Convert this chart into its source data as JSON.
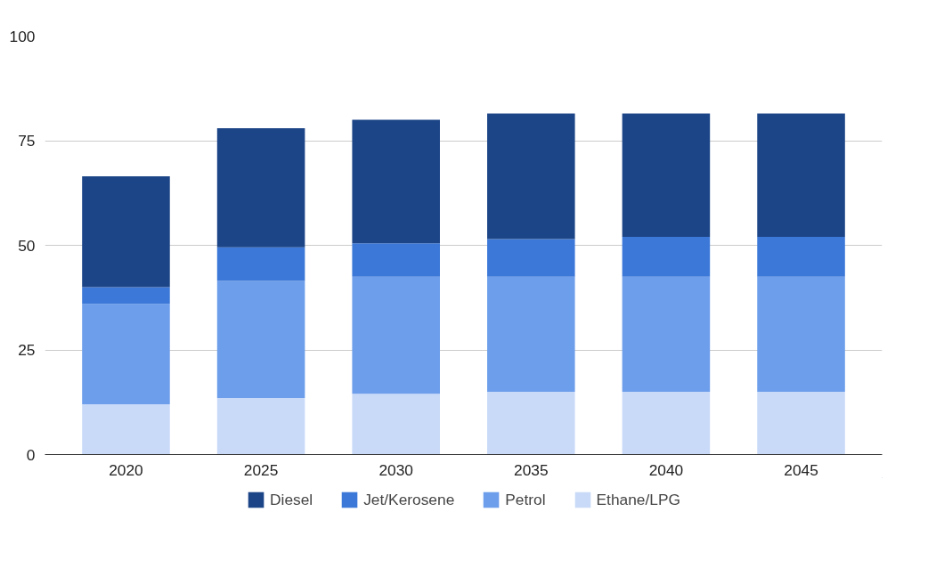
{
  "chart_data": {
    "type": "bar",
    "stacked": true,
    "categories": [
      "2020",
      "2025",
      "2030",
      "2035",
      "2040",
      "2045"
    ],
    "series": [
      {
        "name": "Ethane/LPG",
        "color": "#c9daf8",
        "values": [
          12,
          13.5,
          14.5,
          15,
          15,
          15
        ]
      },
      {
        "name": "Petrol",
        "color": "#6d9eeb",
        "values": [
          24,
          28,
          28,
          27.5,
          27.5,
          27.5
        ]
      },
      {
        "name": "Jet/Kerosene",
        "color": "#3c78d8",
        "values": [
          4,
          8,
          8,
          9,
          9.5,
          9.5
        ]
      },
      {
        "name": "Diesel",
        "color": "#1c4587",
        "values": [
          26.5,
          28.5,
          29.5,
          30,
          29.5,
          29.5
        ]
      }
    ],
    "ylim": [
      0,
      100
    ],
    "yticks": [
      0,
      25,
      50,
      75,
      100
    ],
    "grid": "y",
    "legend": "bottom"
  }
}
